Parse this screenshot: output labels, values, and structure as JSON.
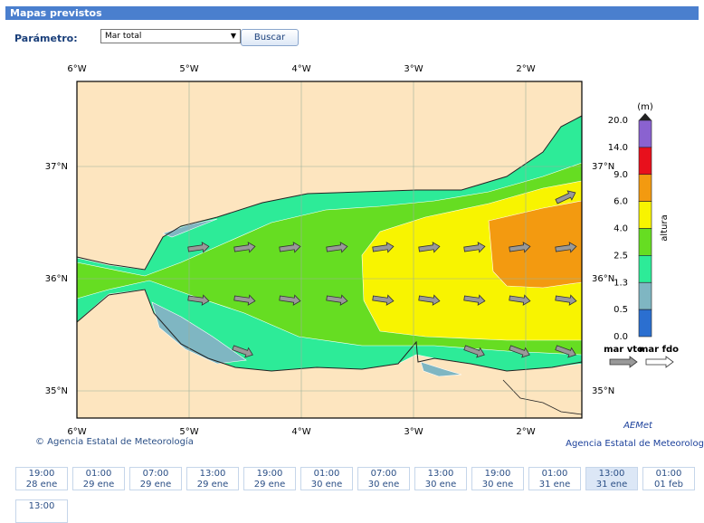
{
  "header": {
    "title": "Mapas previstos"
  },
  "form": {
    "label": "Parámetro:",
    "select": "Mar total",
    "button": "Buscar"
  },
  "map": {
    "lon_labels": [
      "6°W",
      "5°W",
      "4°W",
      "3°W",
      "2°W"
    ],
    "lat_labels": [
      "37°N",
      "36°N",
      "35°N"
    ],
    "unit": "(m)",
    "scale": [
      "20.0",
      "14.0",
      "9.0",
      "6.0",
      "4.0",
      "2.5",
      "1.3",
      "0.5",
      "0.0"
    ],
    "scale_title": "altura",
    "arrow_legend": [
      "mar vto",
      "mar fdo"
    ],
    "credit": "© Agencia Estatal de Meteorología"
  },
  "logo": {
    "name": "AEMet",
    "subtitle": "Agencia Estatal de Meteorología"
  },
  "times": [
    {
      "time": "19:00",
      "date": "28 ene"
    },
    {
      "time": "01:00",
      "date": "29 ene"
    },
    {
      "time": "07:00",
      "date": "29 ene"
    },
    {
      "time": "13:00",
      "date": "29 ene"
    },
    {
      "time": "19:00",
      "date": "29 ene"
    },
    {
      "time": "01:00",
      "date": "30 ene"
    },
    {
      "time": "07:00",
      "date": "30 ene"
    },
    {
      "time": "13:00",
      "date": "30 ene"
    },
    {
      "time": "19:00",
      "date": "30 ene"
    },
    {
      "time": "01:00",
      "date": "31 ene"
    },
    {
      "time": "13:00",
      "date": "31 ene"
    },
    {
      "time": "01:00",
      "date": "01 feb"
    },
    {
      "time": "13:00"
    }
  ]
}
